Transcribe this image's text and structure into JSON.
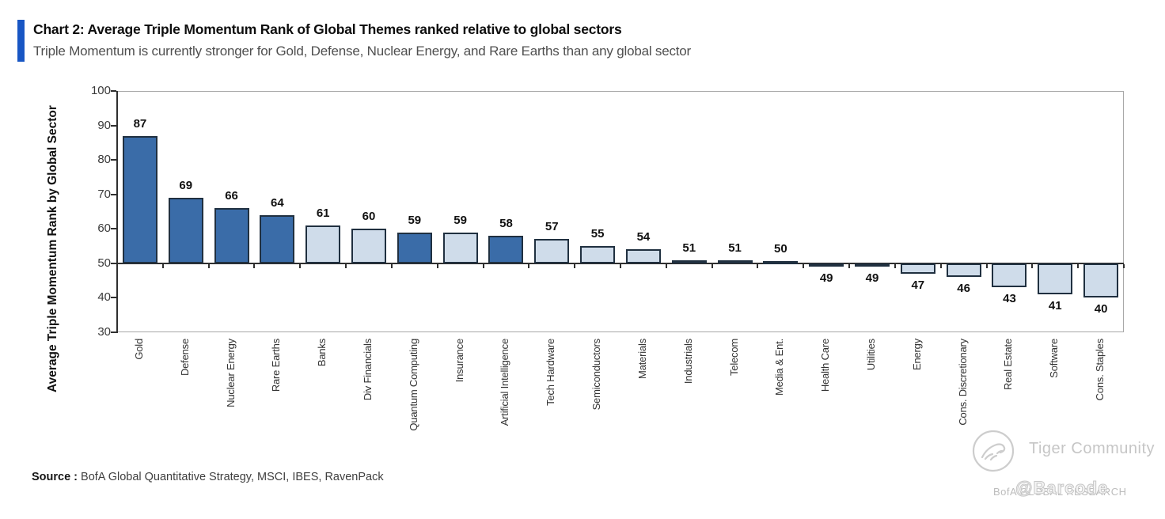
{
  "header": {
    "title": "Chart 2: Average Triple Momentum Rank of Global Themes ranked relative to global sectors",
    "subtitle": "Triple Momentum is currently stronger for Gold, Defense, Nuclear Energy, and Rare Earths than any global sector",
    "accent_color": "#1856C4"
  },
  "chart_data": {
    "type": "bar",
    "title": "Chart 2: Average Triple Momentum Rank of Global Themes ranked relative to global sectors",
    "ylabel": "Average Triple Momentum Rank by Global Sector",
    "ylim": [
      30,
      100
    ],
    "yticks": [
      100,
      90,
      80,
      70,
      60,
      50,
      40,
      30
    ],
    "baseline": 50,
    "grid": false,
    "legend": "none",
    "categories": [
      "Gold",
      "Defense",
      "Nuclear Energy",
      "Rare Earths",
      "Banks",
      "Div Financials",
      "Quantum Computing",
      "Insurance",
      "Artificial Intelligence",
      "Tech Hardware",
      "Semiconductors",
      "Materials",
      "Industrials",
      "Telecom",
      "Media & Ent.",
      "Health Care",
      "Utilities",
      "Energy",
      "Cons. Discretionary",
      "Real Estate",
      "Software",
      "Cons. Staples"
    ],
    "values": [
      87,
      69,
      66,
      64,
      61,
      60,
      59,
      59,
      58,
      57,
      55,
      54,
      51,
      51,
      50,
      49,
      49,
      47,
      46,
      43,
      41,
      40
    ],
    "kinds": [
      "theme",
      "theme",
      "theme",
      "theme",
      "sector",
      "sector",
      "theme",
      "sector",
      "theme",
      "sector",
      "sector",
      "sector",
      "sector",
      "sector",
      "sector",
      "sector",
      "sector",
      "sector",
      "sector",
      "sector",
      "sector",
      "sector"
    ],
    "colors": {
      "theme": "#3A6CA8",
      "sector": "#CFDCEA",
      "bar_border": "#203040",
      "axis": "#2f2f2f",
      "frame": "#a8a8a8"
    }
  },
  "source": {
    "label": "Source :",
    "text": " BofA Global Quantitative Strategy, MSCI, IBES, RavenPack"
  },
  "watermarks": {
    "tiger_text": "Tiger Community",
    "bofa_text": "BofA GLOBAL RESEARCH",
    "barcode_text": "@Barcode"
  }
}
